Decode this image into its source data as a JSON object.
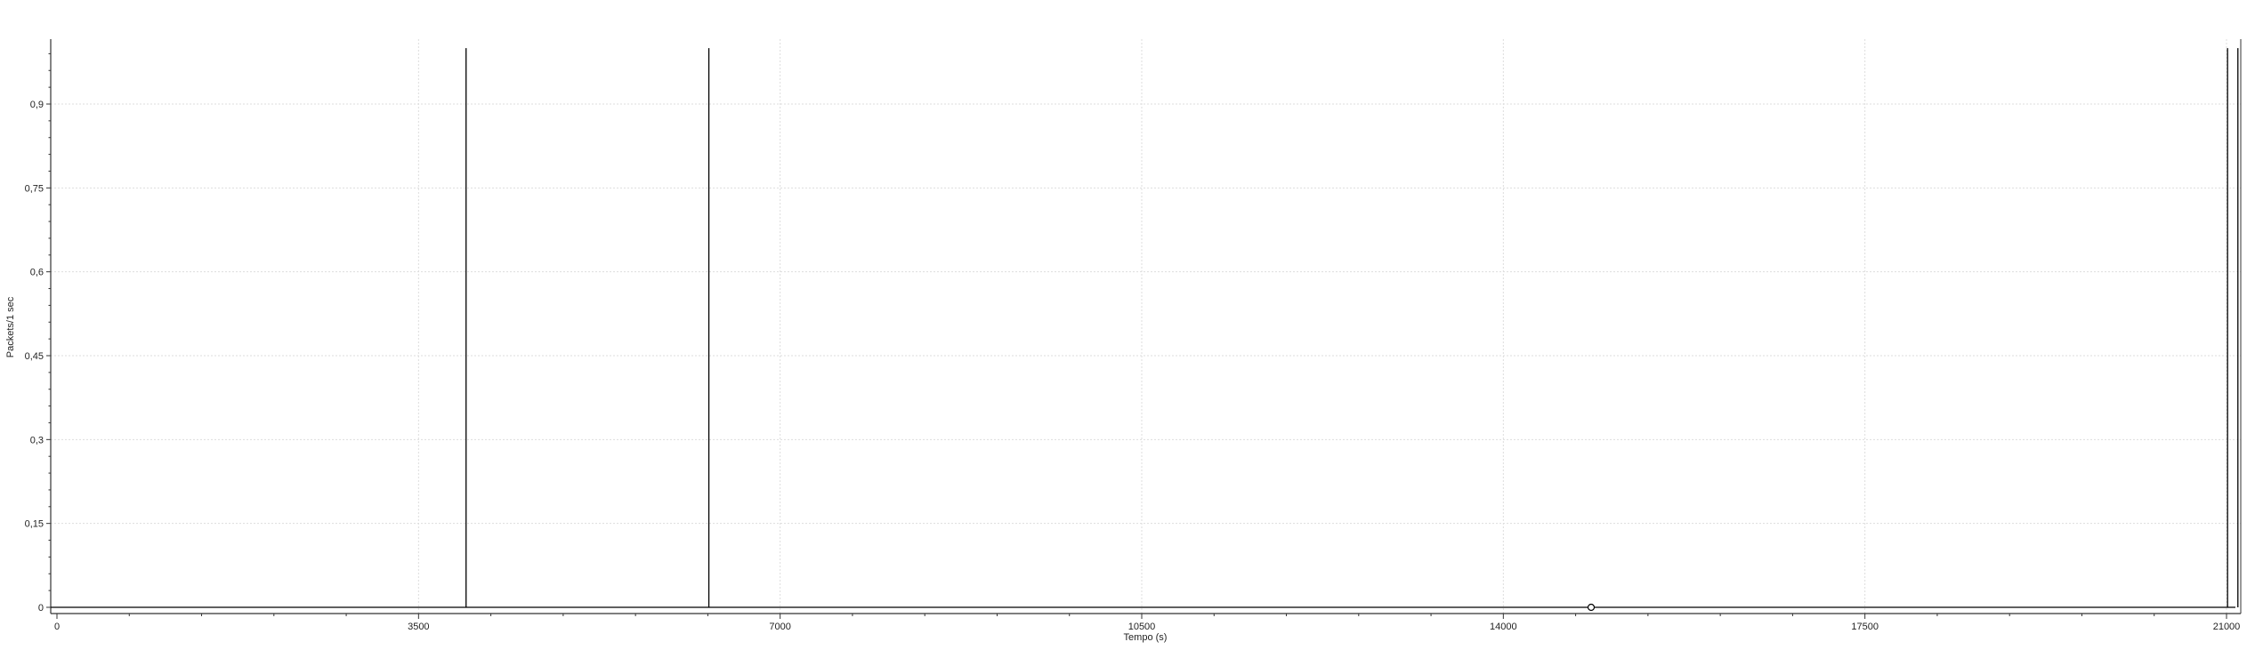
{
  "chart_data": {
    "type": "line",
    "xlabel": "Tempo (s)",
    "ylabel": "Packets/1 sec",
    "xlim": [
      0,
      21200
    ],
    "ylim": [
      -0.008,
      1.01
    ],
    "x_ticks": [
      0,
      3500,
      7000,
      10500,
      14000,
      17500,
      21000
    ],
    "x_tick_labels": [
      "0",
      "3500",
      "7000",
      "10500",
      "14000",
      "17500",
      "21000"
    ],
    "y_ticks": [
      0,
      0.15,
      0.3,
      0.45,
      0.6,
      0.75,
      0.9
    ],
    "y_tick_labels": [
      "0",
      "0,15",
      "0,3",
      "0,45",
      "0,6",
      "0,75",
      "0,9"
    ],
    "grid": true,
    "series": [
      {
        "color": "#000000",
        "spikes": [
          {
            "x": 3960,
            "y": 1
          },
          {
            "x": 6310,
            "y": 1
          },
          {
            "x": 21010,
            "y": 1
          },
          {
            "x": 21110,
            "y": 1
          }
        ],
        "baseline": 0
      }
    ],
    "marker": {
      "x": 14850,
      "y": 0
    }
  }
}
